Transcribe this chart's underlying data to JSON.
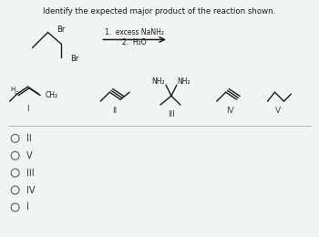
{
  "title": "Identify the expected major product of the reaction shown.",
  "bg_color": "#f0f4f4",
  "text_color": "#222222",
  "answer_choices": [
    "II",
    "V",
    "III",
    "IV",
    "I"
  ],
  "reaction_conditions_1": "1.  excess NaNH₂",
  "reaction_conditions_2": "2.  H₂O",
  "dark": "#1a1a1a",
  "gray": "#666666"
}
